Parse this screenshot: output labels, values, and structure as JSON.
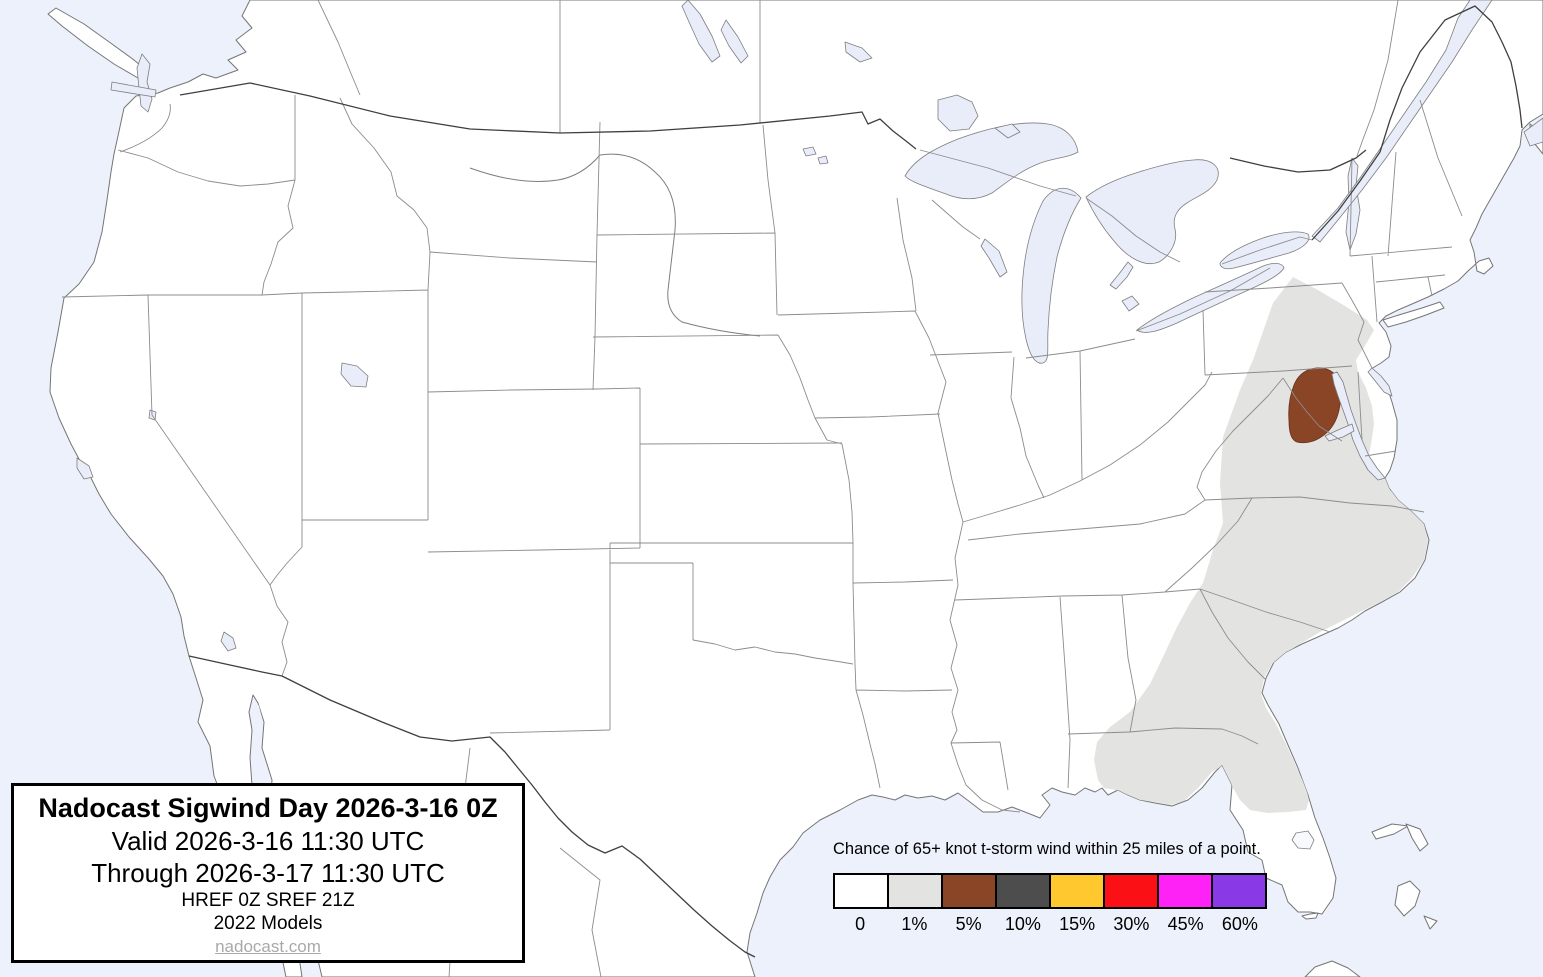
{
  "map": {
    "region": "Contiguous United States with southern Canada and northern Mexico",
    "water_color": "#edf1fb",
    "lake_color": "#e8edf9",
    "land_color": "#ffffff",
    "probability_regions": [
      {
        "level": "1%",
        "color": "#e3e3e1",
        "area": "Coastal plain from eastern Pennsylvania and New Jersey south through Virginia, the Carolinas, Georgia, southern Alabama and north-central Florida"
      },
      {
        "level": "5%",
        "color": "#8a4527",
        "area": "Maryland, District of Columbia and northern Virginia around the upper Chesapeake Bay"
      }
    ]
  },
  "title_box": {
    "title": "Nadocast Sigwind Day 2026-3-16 0Z",
    "valid_line": "Valid 2026-3-16 11:30 UTC",
    "through_line": "Through 2026-3-17 11:30 UTC",
    "models_line1": "HREF 0Z SREF 21Z",
    "models_line2": "2022 Models",
    "website": "nadocast.com"
  },
  "legend": {
    "caption": "Chance of 65+ knot t-storm wind within 25 miles of a point.",
    "bins": [
      {
        "label": "0",
        "color": "#ffffff"
      },
      {
        "label": "1%",
        "color": "#e3e3e1"
      },
      {
        "label": "5%",
        "color": "#8a4527"
      },
      {
        "label": "10%",
        "color": "#4d4d4d"
      },
      {
        "label": "15%",
        "color": "#ffc82e"
      },
      {
        "label": "30%",
        "color": "#fa1015"
      },
      {
        "label": "45%",
        "color": "#fe22f6"
      },
      {
        "label": "60%",
        "color": "#8939e6"
      }
    ]
  }
}
